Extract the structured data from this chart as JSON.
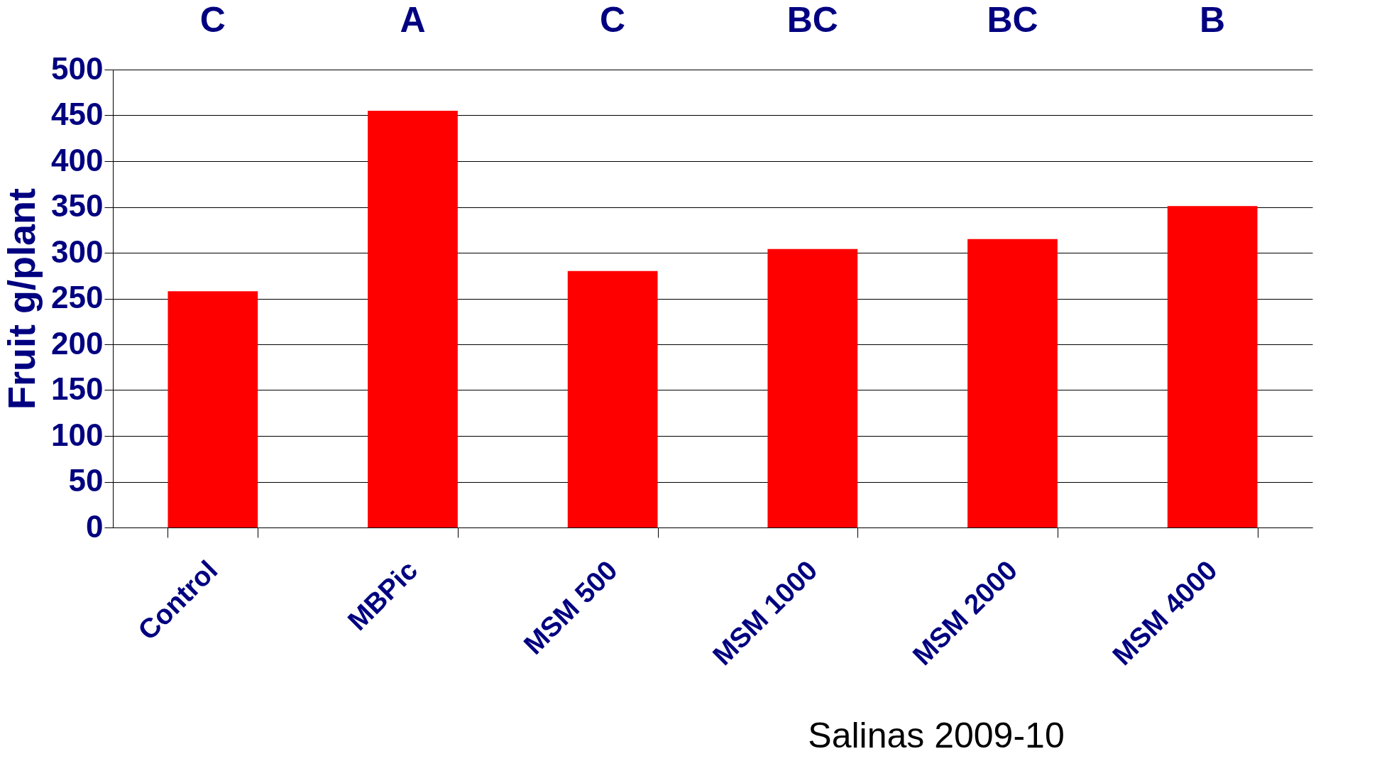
{
  "chart_data": {
    "type": "bar",
    "ylabel": "Fruit g/plant",
    "categories": [
      "Control",
      "MBPic",
      "MSM 500",
      "MSM 1000",
      "MSM 2000",
      "MSM 4000"
    ],
    "values": [
      258,
      455,
      280,
      304,
      315,
      351
    ],
    "color": "#ff0000",
    "ylim": [
      0,
      500
    ],
    "yticks": [
      0,
      50,
      100,
      150,
      200,
      250,
      300,
      350,
      400,
      450,
      500
    ],
    "grid": "y",
    "annotations": [
      "C",
      "A",
      "C",
      "BC",
      "BC",
      "B",
      "Salinas 2009-10"
    ]
  }
}
